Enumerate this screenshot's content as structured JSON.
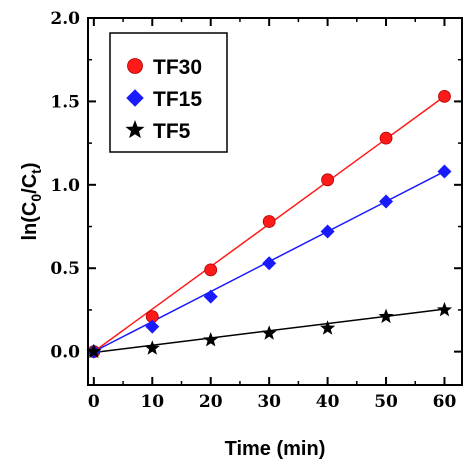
{
  "chart_data": {
    "type": "scatter",
    "xlabel": "Time (min)",
    "ylabel_parts": {
      "main": "ln(C",
      "sub0": "0",
      "slash": "/C",
      "sub1": "t",
      "close": ")"
    },
    "xlim": [
      -1,
      63
    ],
    "ylim": [
      -0.2,
      2.0
    ],
    "xticks": [
      0,
      10,
      20,
      30,
      40,
      50,
      60
    ],
    "yticks": [
      0.0,
      0.5,
      1.0,
      1.5,
      2.0
    ],
    "ytick_labels": [
      "0.0",
      "0.5",
      "1.0",
      "1.5",
      "2.0"
    ],
    "x": [
      0,
      10,
      20,
      30,
      40,
      50,
      60
    ],
    "legend_position": "top-left",
    "series": [
      {
        "name": "TF30",
        "marker": "circle",
        "color": "#ff1a1a",
        "values": [
          0.0,
          0.21,
          0.49,
          0.78,
          1.03,
          1.28,
          1.53
        ],
        "fit": [
          0.0,
          1.53
        ]
      },
      {
        "name": "TF15",
        "marker": "diamond",
        "color": "#1a1aff",
        "values": [
          0.0,
          0.15,
          0.33,
          0.53,
          0.72,
          0.9,
          1.08
        ],
        "fit": [
          0.0,
          1.08
        ]
      },
      {
        "name": "TF5",
        "marker": "star",
        "color": "#000000",
        "values": [
          0.0,
          0.02,
          0.07,
          0.11,
          0.14,
          0.21,
          0.25
        ],
        "fit": [
          -0.005,
          0.255
        ]
      }
    ]
  }
}
